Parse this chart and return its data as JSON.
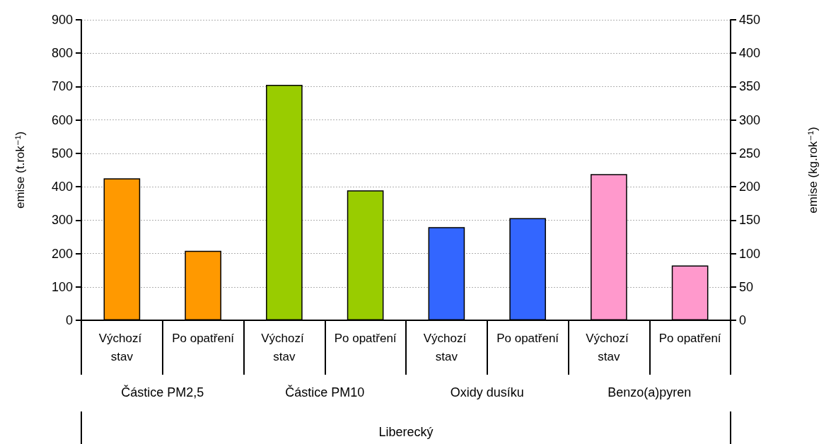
{
  "chart_data": {
    "type": "bar",
    "categories": [
      "Výchozí stav",
      "Po opatření",
      "Výchozí stav",
      "Po opatření",
      "Výchozí stav",
      "Po opatření",
      "Výchozí stav",
      "Po opatření"
    ],
    "series": [
      {
        "values": [
          425,
          208,
          705,
          389,
          279,
          306,
          null,
          null
        ],
        "colors": [
          "#ff9900",
          "#ff9900",
          "#99cc00",
          "#99cc00",
          "#3366ff",
          "#3366ff",
          "#ff99cc",
          "#ff99cc"
        ]
      },
      {
        "axis": "y2",
        "values": [
          null,
          null,
          null,
          null,
          null,
          null,
          219,
          82
        ],
        "colors": [
          "#ff9900",
          "#ff9900",
          "#99cc00",
          "#99cc00",
          "#3366ff",
          "#3366ff",
          "#ff99cc",
          "#ff99cc"
        ]
      }
    ],
    "ylabel": "emise (t.rok⁻¹)",
    "y2label": "emise (kg.rok⁻¹)",
    "ylim": [
      0,
      900
    ],
    "yticks": [
      0,
      100,
      200,
      300,
      400,
      500,
      600,
      700,
      800,
      900
    ],
    "y2lim": [
      0,
      450
    ],
    "y2ticks": [
      0,
      50,
      100,
      150,
      200,
      250,
      300,
      350,
      400,
      450
    ],
    "annotations": [
      "Částice PM2,5",
      "Částice PM10",
      "Oxidy dusíku",
      "Benzo(a)pyren",
      "Liberecký"
    ],
    "grid": "y"
  }
}
